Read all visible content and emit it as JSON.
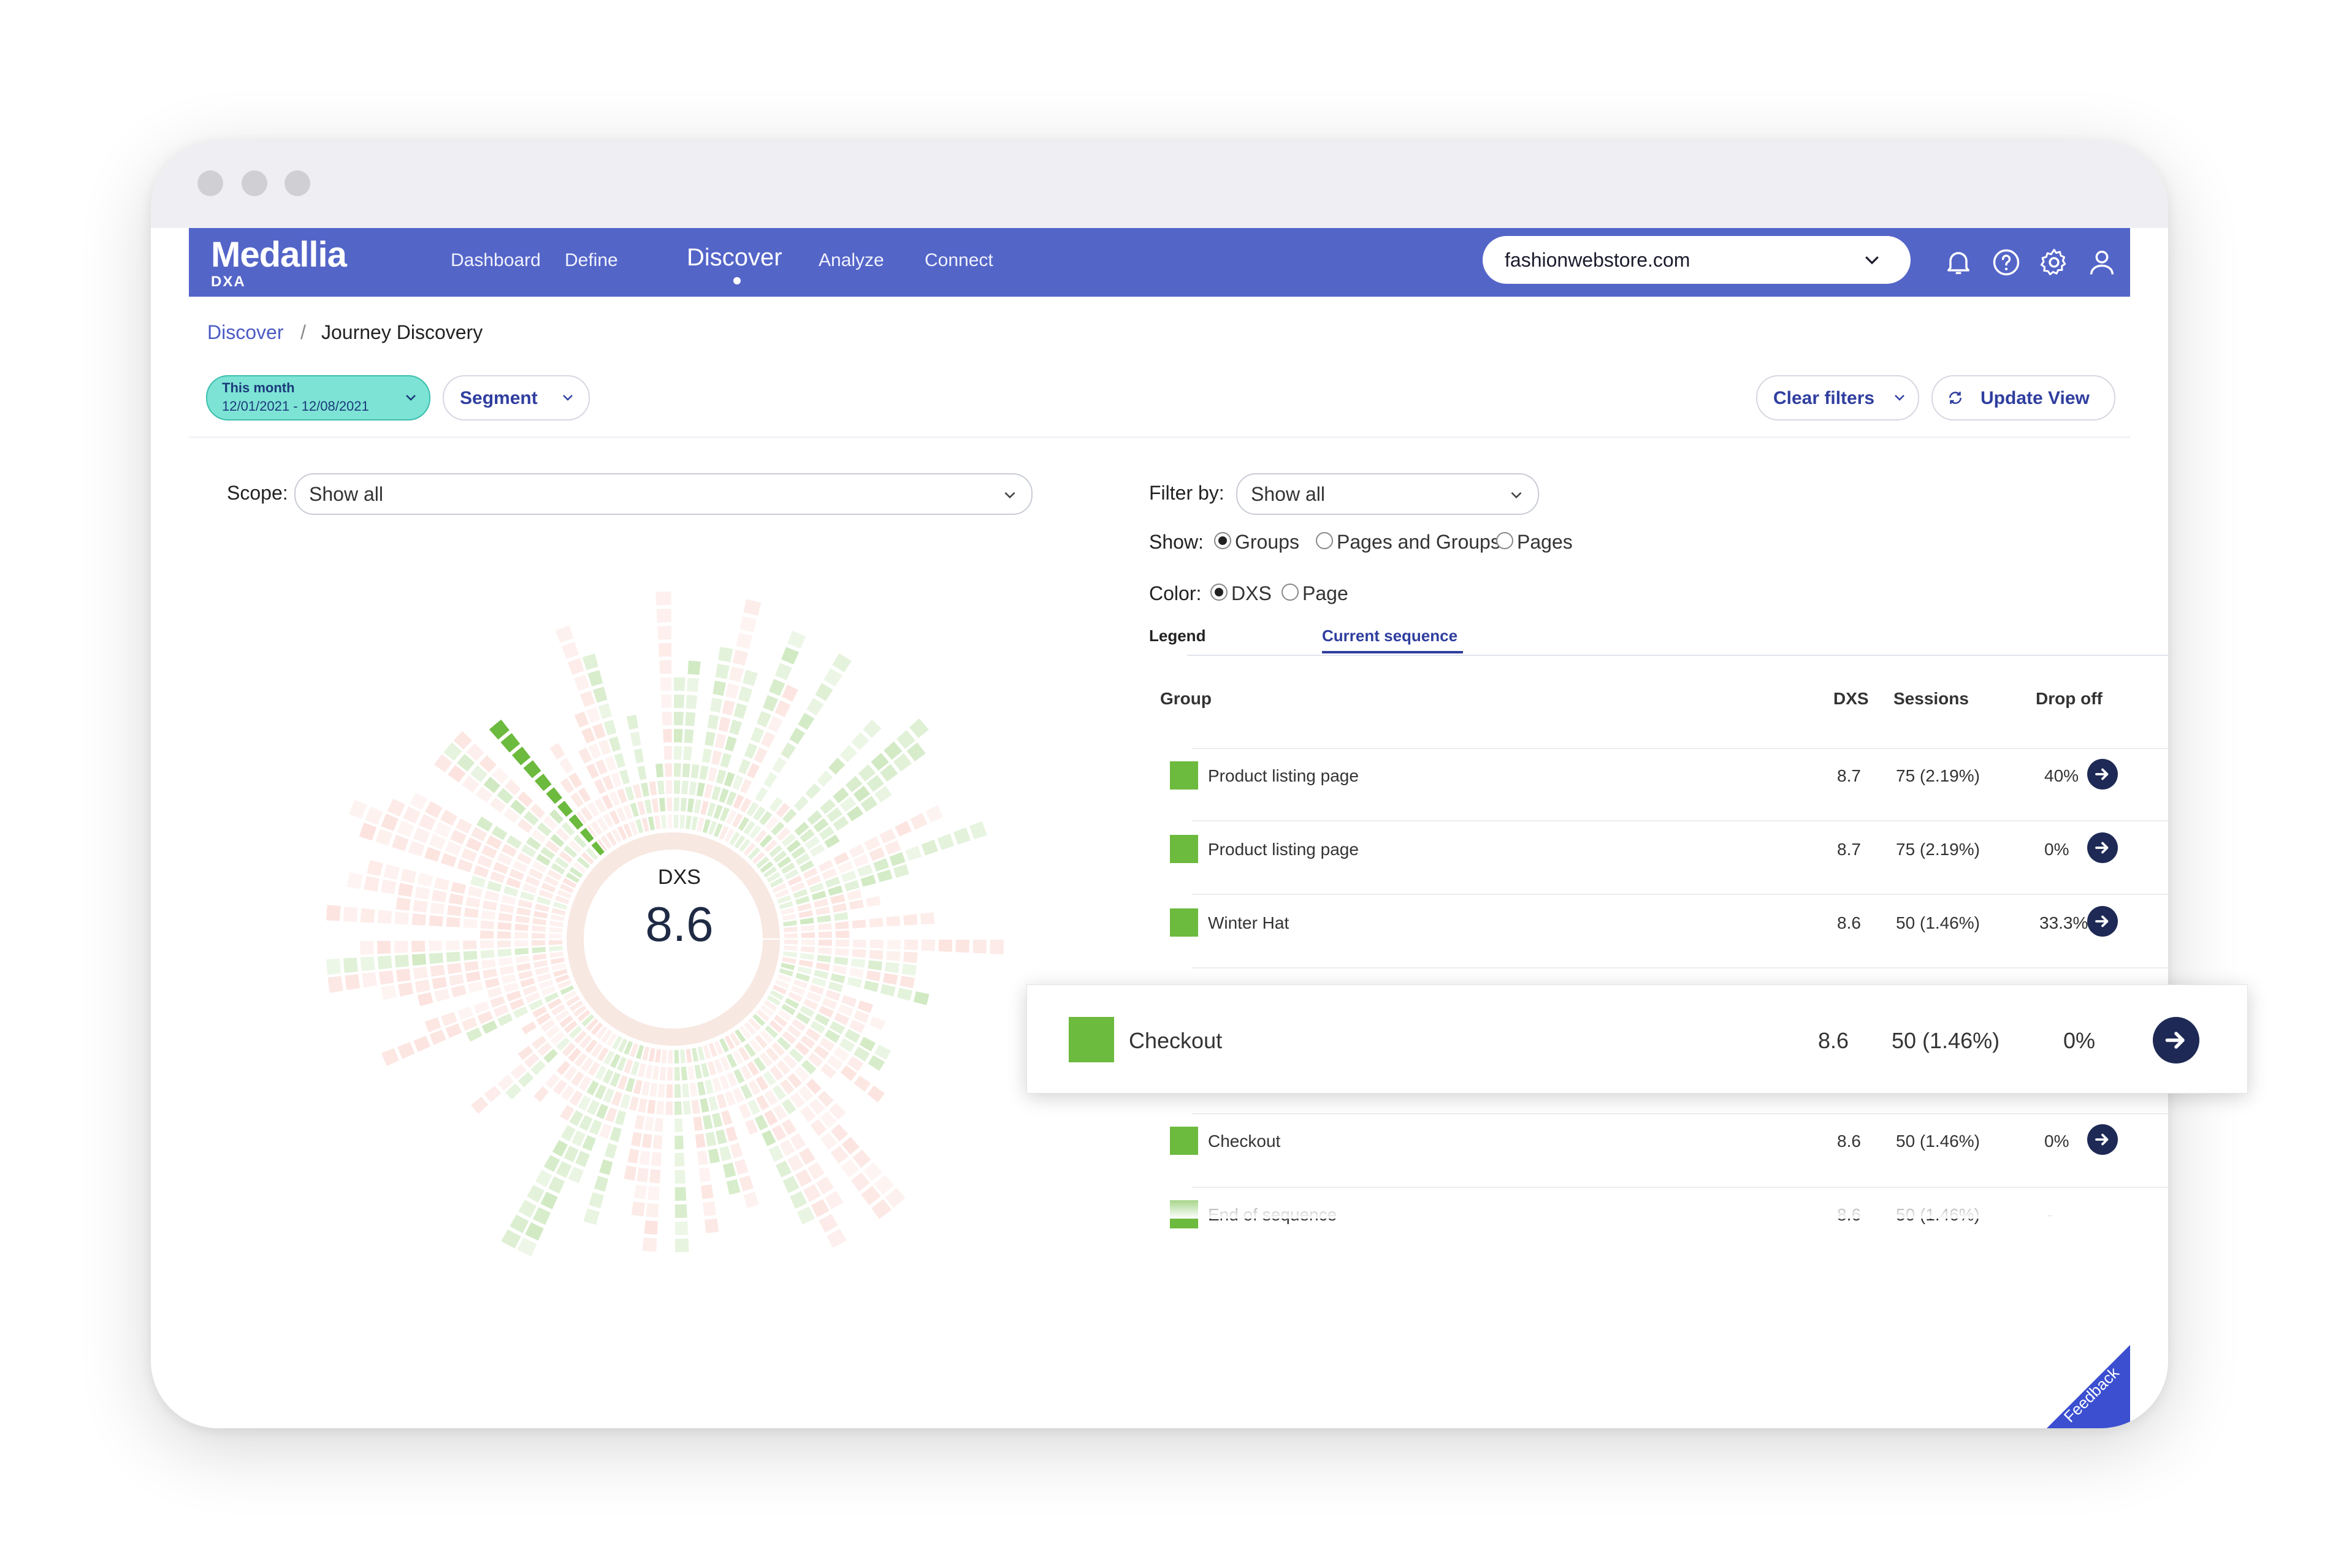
{
  "nav": {
    "logo": "Medallia",
    "logo_sub": "DXA",
    "items": [
      "Dashboard",
      "Define",
      "Discover",
      "Analyze",
      "Connect"
    ],
    "active": "Discover",
    "site_selector": "fashionwebstore.com"
  },
  "breadcrumb": {
    "parent": "Discover",
    "separator": "/",
    "current": "Journey Discovery"
  },
  "filters": {
    "date_title": "This month",
    "date_range": "12/01/2021 - 12/08/2021",
    "segment": "Segment",
    "clear_filters": "Clear filters",
    "update_view": "Update View"
  },
  "scope": {
    "label": "Scope:",
    "value": "Show all"
  },
  "filter_by": {
    "label": "Filter by:",
    "value": "Show all"
  },
  "show": {
    "label": "Show:",
    "options": [
      "Groups",
      "Pages and Groups",
      "Pages"
    ],
    "selected": "Groups"
  },
  "color": {
    "label": "Color:",
    "options": [
      "DXS",
      "Page"
    ],
    "selected": "DXS"
  },
  "tabs": {
    "legend": "Legend",
    "current": "Current sequence"
  },
  "table": {
    "headers": [
      "Group",
      "DXS",
      "Sessions",
      "Drop off"
    ],
    "rows": [
      {
        "group": "Product listing page",
        "dxs": "8.7",
        "sessions": "75 (2.19%)",
        "drop": "40%"
      },
      {
        "group": "Product listing page",
        "dxs": "8.7",
        "sessions": "75 (2.19%)",
        "drop": "0%"
      },
      {
        "group": "Winter Hat",
        "dxs": "8.6",
        "sessions": "50 (1.46%)",
        "drop": "33.3%"
      },
      {
        "group": "Checkout",
        "dxs": "8.6",
        "sessions": "50 (1.46%)",
        "drop": "0%"
      },
      {
        "group": "Checkout",
        "dxs": "8.6",
        "sessions": "50 (1.46%)",
        "drop": "0%"
      },
      {
        "group": "End of sequence",
        "dxs": "8.6",
        "sessions": "50 (1.46%)",
        "drop": "-"
      }
    ],
    "highlight": {
      "group": "Checkout",
      "dxs": "8.6",
      "sessions": "50 (1.46%)",
      "drop": "0%"
    }
  },
  "sunburst": {
    "center_label": "DXS",
    "center_value": "8.6",
    "good_color": "#6cba3e",
    "bad_color": "#f4a89a"
  },
  "feedback": "Feedback",
  "colors": {
    "nav": "#5465c8",
    "accent": "#2f3e9e",
    "date_pill": "#7de3d5"
  }
}
